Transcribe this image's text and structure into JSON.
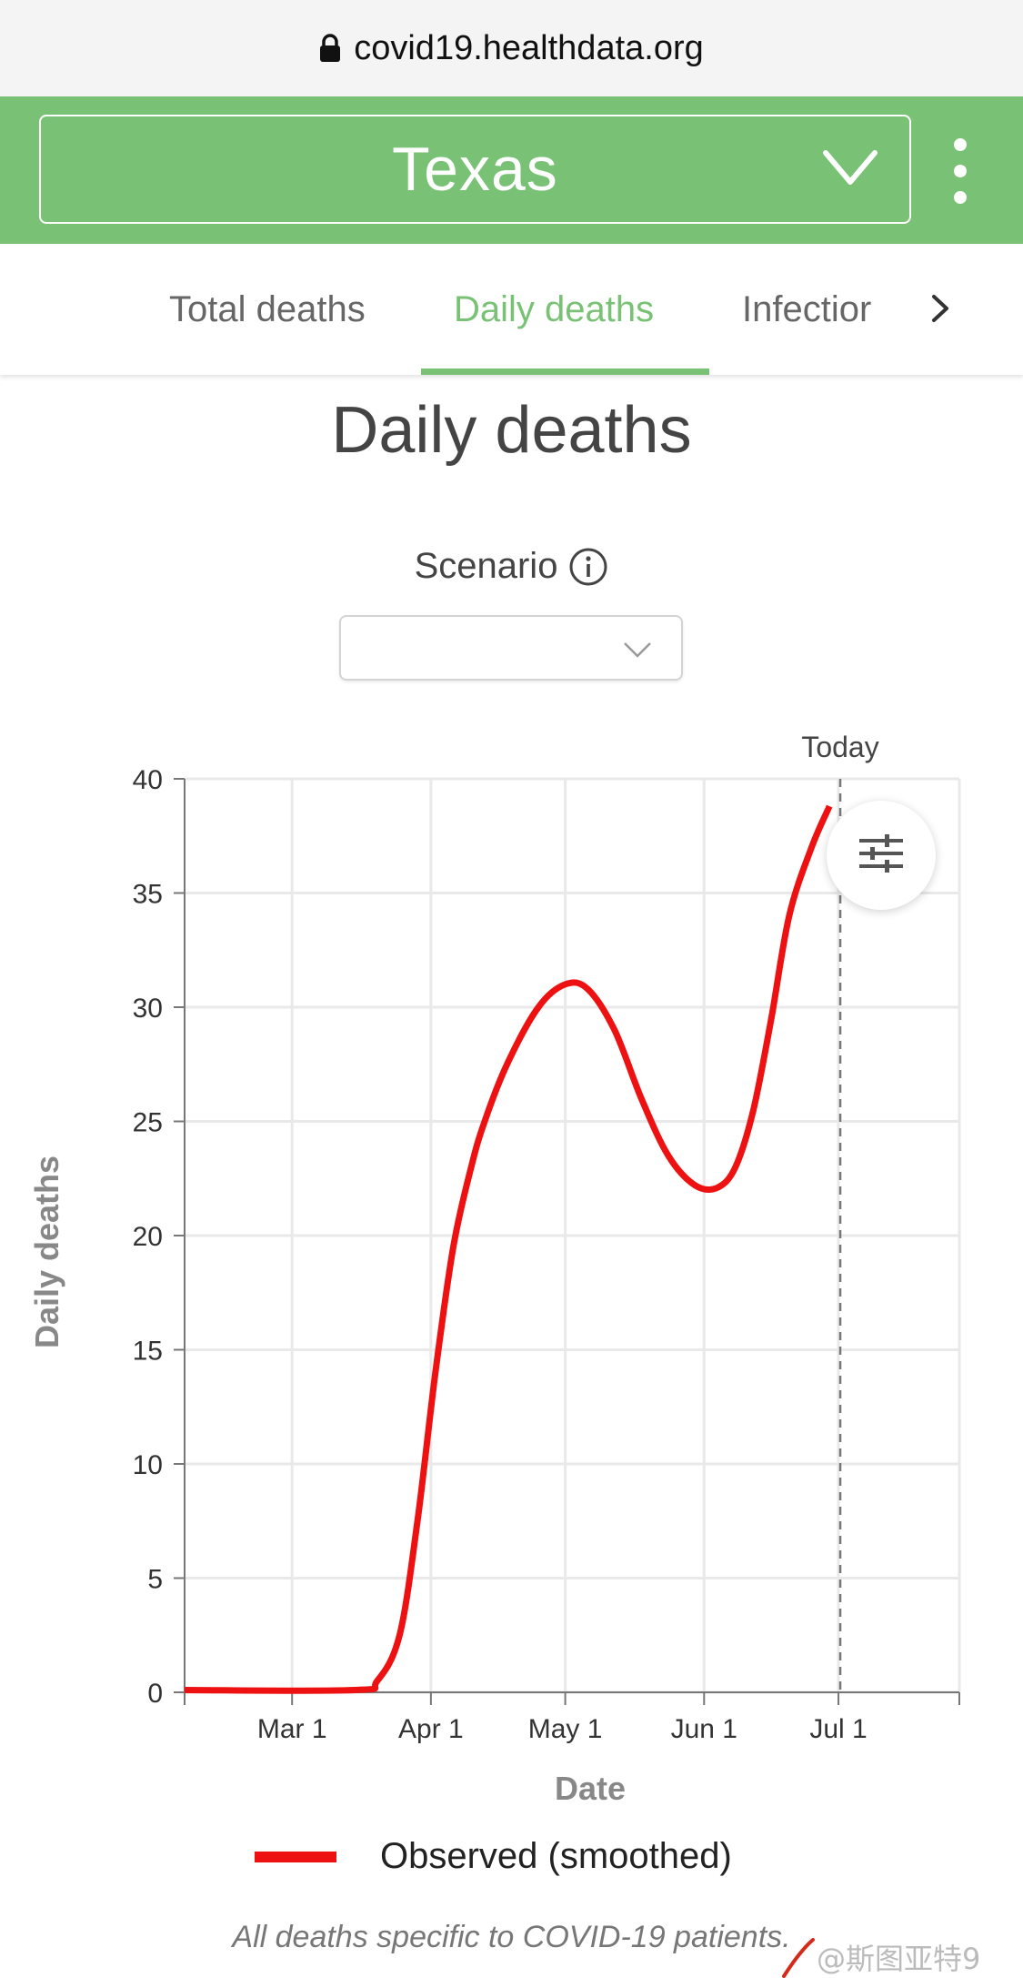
{
  "browser": {
    "url": "covid19.healthdata.org"
  },
  "header": {
    "location": "Texas"
  },
  "tabs": [
    {
      "label": "Total deaths"
    },
    {
      "label": "Daily deaths"
    },
    {
      "label": "Infectior"
    }
  ],
  "page": {
    "title": "Daily deaths"
  },
  "scenario": {
    "label": "Scenario",
    "value": ""
  },
  "chart_data": {
    "type": "line",
    "xlabel": "Date",
    "ylabel": "Daily deaths",
    "ylim": [
      0,
      40
    ],
    "yticks": [
      0,
      5,
      10,
      15,
      20,
      25,
      30,
      35,
      40
    ],
    "xticks": [
      "Mar 1",
      "Apr 1",
      "May 1",
      "Jun 1",
      "Jul 1"
    ],
    "xlim": [
      "2020-02-06",
      "2020-07-28"
    ],
    "grid": true,
    "today": {
      "label": "Today",
      "date": "2020-07-01"
    },
    "series": [
      {
        "name": "Observed (smoothed)",
        "color": "#ee1111",
        "x": [
          "2020-02-06",
          "2020-03-15",
          "2020-03-20",
          "2020-03-25",
          "2020-03-29",
          "2020-04-02",
          "2020-04-06",
          "2020-04-10",
          "2020-04-13",
          "2020-04-18",
          "2020-04-25",
          "2020-05-01",
          "2020-05-06",
          "2020-05-12",
          "2020-05-18",
          "2020-05-24",
          "2020-05-30",
          "2020-06-04",
          "2020-06-08",
          "2020-06-12",
          "2020-06-16",
          "2020-06-20",
          "2020-06-25",
          "2020-06-29"
        ],
        "y": [
          0.1,
          0.1,
          0.5,
          2.5,
          7.5,
          14,
          19.5,
          23,
          25,
          27.5,
          30,
          31,
          30.8,
          29,
          26,
          23.5,
          22.2,
          22.1,
          23,
          25.5,
          29.5,
          34,
          37,
          38.8
        ]
      }
    ],
    "legend": {
      "label": "Observed (smoothed)",
      "placement": "bottom"
    },
    "footnote": "All deaths specific to COVID-19 patients."
  },
  "watermark": "@斯图亚特9",
  "icons": {
    "lock": "lock-icon",
    "state_dropdown": "chevron-down-icon",
    "menu": "more-vertical-icon",
    "tabs_next": "chevron-right-icon",
    "info": "info-icon",
    "filter": "sliders-icon"
  },
  "colors": {
    "brand_green": "#79c275",
    "series_red": "#ee1111"
  }
}
